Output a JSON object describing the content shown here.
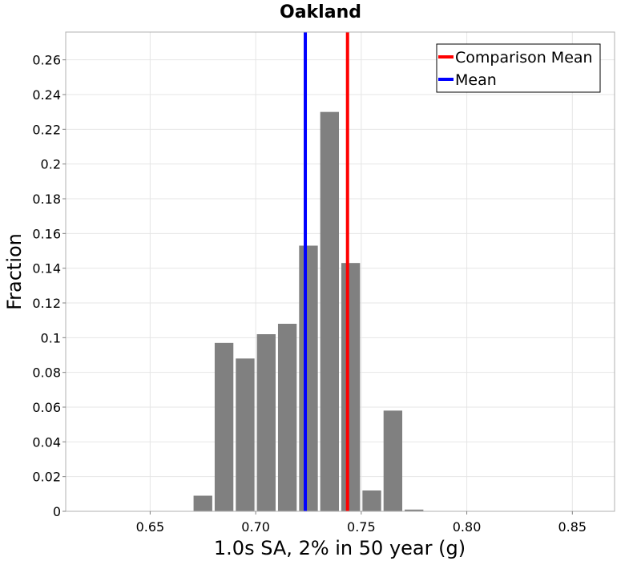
{
  "chart_data": {
    "type": "bar",
    "title": "Oakland",
    "xlabel": "1.0s SA, 2% in 50 year (g)",
    "ylabel": "Fraction",
    "xlim": [
      0.61,
      0.87
    ],
    "ylim": [
      0,
      0.276
    ],
    "xticks": [
      0.65,
      0.7,
      0.75,
      0.8,
      0.85
    ],
    "xtick_labels": [
      "0.65",
      "0.70",
      "0.75",
      "0.80",
      "0.85"
    ],
    "yticks": [
      0,
      0.02,
      0.04,
      0.06,
      0.08,
      0.1,
      0.12,
      0.14,
      0.16,
      0.18,
      0.2,
      0.22,
      0.24,
      0.26
    ],
    "ytick_labels": [
      "0",
      "0.02",
      "0.04",
      "0.06",
      "0.08",
      "0.1",
      "0.12",
      "0.14",
      "0.16",
      "0.18",
      "0.2",
      "0.22",
      "0.24",
      "0.26"
    ],
    "grid": true,
    "bin_width": 0.01,
    "bins": [
      {
        "center": 0.675,
        "value": 0.009
      },
      {
        "center": 0.685,
        "value": 0.097
      },
      {
        "center": 0.695,
        "value": 0.088
      },
      {
        "center": 0.705,
        "value": 0.102
      },
      {
        "center": 0.715,
        "value": 0.108
      },
      {
        "center": 0.725,
        "value": 0.153
      },
      {
        "center": 0.735,
        "value": 0.23
      },
      {
        "center": 0.745,
        "value": 0.143
      },
      {
        "center": 0.755,
        "value": 0.012
      },
      {
        "center": 0.765,
        "value": 0.058
      },
      {
        "center": 0.775,
        "value": 0.001
      }
    ],
    "bar_color": "#808080",
    "vlines": [
      {
        "name": "Comparison Mean",
        "x": 0.7435,
        "color": "#ff0000"
      },
      {
        "name": "Mean",
        "x": 0.7235,
        "color": "#0000ff"
      }
    ],
    "legend": {
      "position": "top-right",
      "entries": [
        {
          "label": "Comparison Mean",
          "color": "#ff0000"
        },
        {
          "label": "Mean",
          "color": "#0000ff"
        }
      ]
    }
  }
}
